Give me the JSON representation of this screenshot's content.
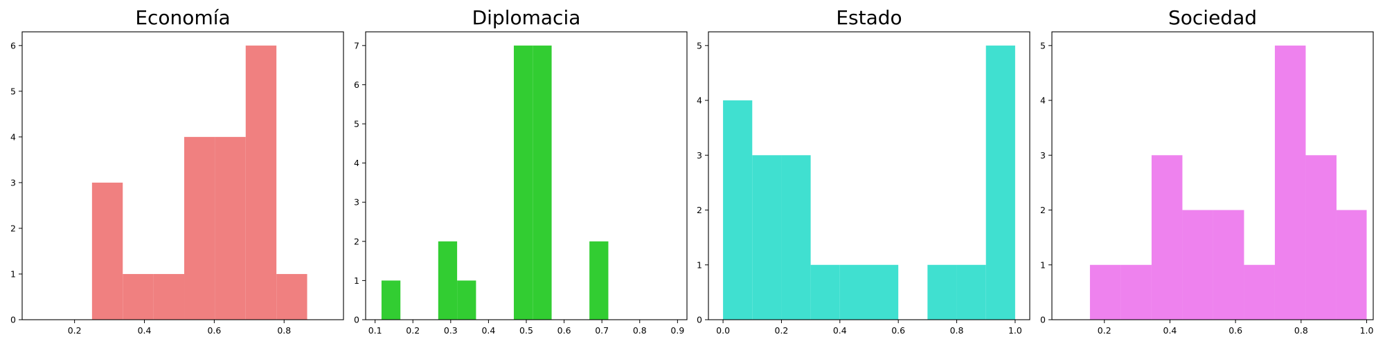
{
  "chart_data": [
    {
      "type": "bar",
      "title": "Economía",
      "color": "#F08080",
      "xlim": [
        0.05,
        0.97
      ],
      "ylim": [
        0,
        6.3
      ],
      "xticks": [
        0.2,
        0.4,
        0.6,
        0.8
      ],
      "xtick_labels": [
        "0.2",
        "0.4",
        "0.6",
        "0.8"
      ],
      "yticks": [
        0,
        1,
        2,
        3,
        4,
        5,
        6
      ],
      "ytick_labels": [
        "0",
        "1",
        "2",
        "3",
        "4",
        "5",
        "6"
      ],
      "bins": [
        {
          "x0": 0.25,
          "x1": 0.338,
          "count": 3
        },
        {
          "x0": 0.338,
          "x1": 0.426,
          "count": 1
        },
        {
          "x0": 0.426,
          "x1": 0.514,
          "count": 1
        },
        {
          "x0": 0.514,
          "x1": 0.602,
          "count": 4
        },
        {
          "x0": 0.602,
          "x1": 0.69,
          "count": 4
        },
        {
          "x0": 0.69,
          "x1": 0.778,
          "count": 6
        },
        {
          "x0": 0.778,
          "x1": 0.866,
          "count": 1
        }
      ]
    },
    {
      "type": "bar",
      "title": "Diplomacia",
      "color": "#32CD32",
      "xlim": [
        0.075,
        0.925
      ],
      "ylim": [
        0,
        7.35
      ],
      "xticks": [
        0.1,
        0.2,
        0.3,
        0.4,
        0.5,
        0.6,
        0.7,
        0.8,
        0.9
      ],
      "xtick_labels": [
        "0.1",
        "0.2",
        "0.3",
        "0.4",
        "0.5",
        "0.6",
        "0.7",
        "0.8",
        "0.9"
      ],
      "yticks": [
        0,
        1,
        2,
        3,
        4,
        5,
        6,
        7
      ],
      "ytick_labels": [
        "0",
        "1",
        "2",
        "3",
        "4",
        "5",
        "6",
        "7"
      ],
      "bins": [
        {
          "x0": 0.117,
          "x1": 0.167,
          "count": 1
        },
        {
          "x0": 0.167,
          "x1": 0.217,
          "count": 0
        },
        {
          "x0": 0.217,
          "x1": 0.267,
          "count": 0
        },
        {
          "x0": 0.267,
          "x1": 0.317,
          "count": 2
        },
        {
          "x0": 0.317,
          "x1": 0.367,
          "count": 1
        },
        {
          "x0": 0.367,
          "x1": 0.417,
          "count": 0
        },
        {
          "x0": 0.417,
          "x1": 0.467,
          "count": 0
        },
        {
          "x0": 0.467,
          "x1": 0.517,
          "count": 7
        },
        {
          "x0": 0.517,
          "x1": 0.567,
          "count": 7
        },
        {
          "x0": 0.567,
          "x1": 0.617,
          "count": 0
        },
        {
          "x0": 0.617,
          "x1": 0.667,
          "count": 0
        },
        {
          "x0": 0.667,
          "x1": 0.717,
          "count": 2
        }
      ]
    },
    {
      "type": "bar",
      "title": "Estado",
      "color": "#40E0D0",
      "xlim": [
        -0.05,
        1.05
      ],
      "ylim": [
        0,
        5.25
      ],
      "xticks": [
        0.0,
        0.2,
        0.4,
        0.6,
        0.8,
        1.0
      ],
      "xtick_labels": [
        "0.0",
        "0.2",
        "0.4",
        "0.6",
        "0.8",
        "1.0"
      ],
      "yticks": [
        0,
        1,
        2,
        3,
        4,
        5
      ],
      "ytick_labels": [
        "0",
        "1",
        "2",
        "3",
        "4",
        "5"
      ],
      "bins": [
        {
          "x0": 0.0,
          "x1": 0.1,
          "count": 4
        },
        {
          "x0": 0.1,
          "x1": 0.2,
          "count": 3
        },
        {
          "x0": 0.2,
          "x1": 0.3,
          "count": 3
        },
        {
          "x0": 0.3,
          "x1": 0.4,
          "count": 1
        },
        {
          "x0": 0.4,
          "x1": 0.5,
          "count": 1
        },
        {
          "x0": 0.5,
          "x1": 0.6,
          "count": 1
        },
        {
          "x0": 0.6,
          "x1": 0.7,
          "count": 0
        },
        {
          "x0": 0.7,
          "x1": 0.8,
          "count": 1
        },
        {
          "x0": 0.8,
          "x1": 0.9,
          "count": 1
        },
        {
          "x0": 0.9,
          "x1": 1.0,
          "count": 5
        }
      ]
    },
    {
      "type": "bar",
      "title": "Sociedad",
      "color": "#EE82EE",
      "xlim": [
        0.04,
        1.02
      ],
      "ylim": [
        0,
        5.25
      ],
      "xticks": [
        0.2,
        0.4,
        0.6,
        0.8,
        1.0
      ],
      "xtick_labels": [
        "0.2",
        "0.4",
        "0.6",
        "0.8",
        "1.0"
      ],
      "yticks": [
        0,
        1,
        2,
        3,
        4,
        5
      ],
      "ytick_labels": [
        "0",
        "1",
        "2",
        "3",
        "4",
        "5"
      ],
      "bins": [
        {
          "x0": 0.156,
          "x1": 0.25,
          "count": 1
        },
        {
          "x0": 0.25,
          "x1": 0.344,
          "count": 1
        },
        {
          "x0": 0.344,
          "x1": 0.438,
          "count": 3
        },
        {
          "x0": 0.438,
          "x1": 0.532,
          "count": 2
        },
        {
          "x0": 0.532,
          "x1": 0.626,
          "count": 2
        },
        {
          "x0": 0.626,
          "x1": 0.72,
          "count": 1
        },
        {
          "x0": 0.72,
          "x1": 0.814,
          "count": 5
        },
        {
          "x0": 0.814,
          "x1": 0.908,
          "count": 3
        },
        {
          "x0": 0.908,
          "x1": 1.0,
          "count": 2
        }
      ]
    }
  ]
}
